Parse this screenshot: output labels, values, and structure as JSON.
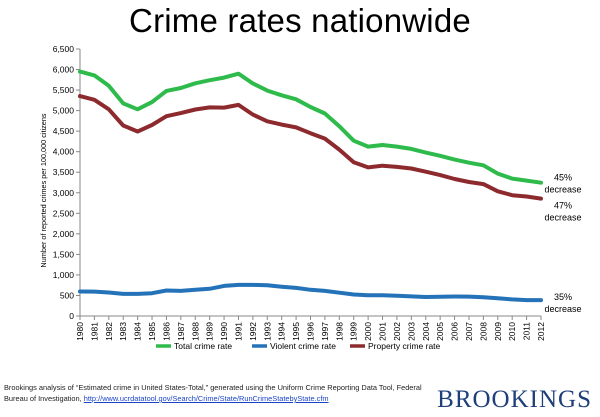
{
  "title": "Crime rates nationwide",
  "source": {
    "text": "Brookings analysis of “Estimated crime in United States-Total,” generated  using the Uniform Crime Reporting Data Tool, Federal Bureau of Investigation,",
    "link": "http://www.ucrdatatool.gov/Search/Crime/State/RunCrimeStatebyState.cfm"
  },
  "logo": "BROOKINGS",
  "chart_data": {
    "type": "line",
    "title": "Crime rates nationwide",
    "xlabel": "",
    "ylabel": "Number of reported crimes per 100,000 citizens",
    "ylim": [
      0,
      6500
    ],
    "yticks": [
      0,
      500,
      1000,
      1500,
      2000,
      2500,
      3000,
      3500,
      4000,
      4500,
      5000,
      5500,
      6000,
      6500
    ],
    "ytick_labels": [
      "0",
      "500",
      "1,000",
      "1,500",
      "2,000",
      "2,500",
      "3,000",
      "3,500",
      "4,000",
      "4,500",
      "5,000",
      "5,500",
      "6,000",
      "6,500"
    ],
    "grid": false,
    "legend_position": "bottom",
    "x": [
      "1980",
      "1981",
      "1982",
      "1983",
      "1984",
      "1985",
      "1986",
      "1987",
      "1988",
      "1989",
      "1990",
      "1991",
      "1992",
      "1993",
      "1994",
      "1995",
      "1996",
      "1997",
      "1998",
      "1999",
      "2000",
      "2001",
      "2002",
      "2003",
      "2004",
      "2005",
      "2006",
      "2007",
      "2008",
      "2009",
      "2010",
      "2011",
      "2012"
    ],
    "series": [
      {
        "name": "Total crime rate",
        "color": "#2ebb4c",
        "values": [
          5950,
          5858,
          5604,
          5175,
          5031,
          5207,
          5480,
          5550,
          5664,
          5741,
          5803,
          5898,
          5661,
          5487,
          5374,
          5276,
          5088,
          4930,
          4620,
          4267,
          4125,
          4163,
          4125,
          4067,
          3977,
          3900,
          3808,
          3731,
          3669,
          3466,
          3346,
          3296,
          3246
        ]
      },
      {
        "name": "Violent crime rate",
        "color": "#2472b8",
        "values": [
          597,
          594,
          571,
          538,
          539,
          556,
          620,
          610,
          637,
          663,
          732,
          758,
          758,
          747,
          714,
          685,
          637,
          611,
          568,
          523,
          507,
          505,
          495,
          476,
          463,
          470,
          474,
          472,
          458,
          432,
          404,
          387,
          387
        ]
      },
      {
        "name": "Property crime rate",
        "color": "#8c2a2e",
        "values": [
          5353,
          5264,
          5033,
          4637,
          4492,
          4651,
          4863,
          4940,
          5027,
          5078,
          5073,
          5140,
          4903,
          4740,
          4660,
          4591,
          4451,
          4319,
          4052,
          3744,
          3618,
          3658,
          3630,
          3591,
          3514,
          3431,
          3334,
          3263,
          3212,
          3036,
          2942,
          2909,
          2859
        ]
      }
    ],
    "annotations": [
      {
        "series": "Total crime rate",
        "lines": [
          "45%",
          "decrease"
        ]
      },
      {
        "series": "Property crime rate",
        "lines": [
          "47%",
          "decrease"
        ]
      },
      {
        "series": "Violent crime rate",
        "lines": [
          "35%",
          "decrease"
        ]
      }
    ]
  }
}
